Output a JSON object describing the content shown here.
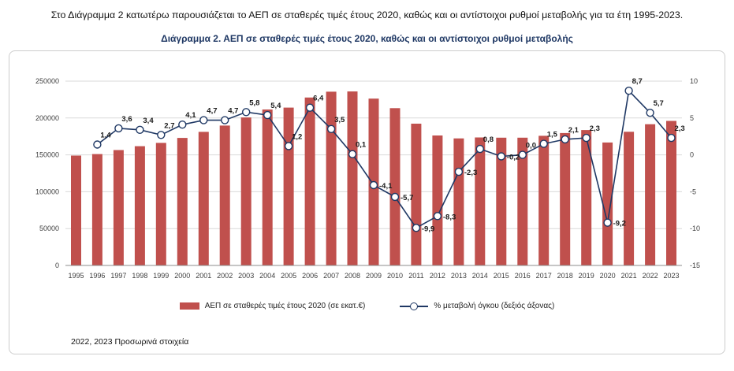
{
  "page": {
    "intro": "Στο Διάγραμμα 2 κατωτέρω παρουσιάζεται το ΑΕΠ σε σταθερές τιμές έτους 2020, καθώς και οι αντίστοιχοι ρυθμοί μεταβολής για τα έτη 1995-2023.",
    "footnote": "2022, 2023  Προσωρινά στοιχεία"
  },
  "chart_data": {
    "type": "bar",
    "subtype": "bar-line-combo",
    "title": "Διάγραμμα 2. ΑΕΠ σε σταθερές τιμές έτους 2020, καθώς και οι αντίστοιχοι ρυθμοί μεταβολής",
    "categories": [
      "1995",
      "1996",
      "1997",
      "1998",
      "1999",
      "2000",
      "2001",
      "2002",
      "2003",
      "2004",
      "2005",
      "2006",
      "2007",
      "2008",
      "2009",
      "2010",
      "2011",
      "2012",
      "2013",
      "2014",
      "2015",
      "2016",
      "2017",
      "2018",
      "2019",
      "2020",
      "2021",
      "2022",
      "2023"
    ],
    "grid": true,
    "legend_position": "bottom",
    "left_axis": {
      "min": 0,
      "max": 250000,
      "ticks": [
        0,
        50000,
        100000,
        150000,
        200000,
        250000
      ]
    },
    "right_axis": {
      "min": -15,
      "max": 10,
      "ticks": [
        -15,
        -10,
        -5,
        0,
        5,
        10
      ]
    },
    "colors": {
      "bar": "#c0504d",
      "line": "#1f3864",
      "grid": "#d9d9d9",
      "axis_text": "#404040",
      "label_text": "#1a1a1a"
    },
    "series": [
      {
        "name": "ΑΕΠ σε σταθερές τιμές έτους  2020 (σε εκατ.€)",
        "type": "bar",
        "axis": "left",
        "values": [
          149000,
          151100,
          156500,
          161800,
          166200,
          173000,
          181200,
          189700,
          200700,
          211500,
          214100,
          227800,
          235700,
          236000,
          226300,
          213400,
          192300,
          176300,
          172300,
          173600,
          173300,
          173300,
          175900,
          179600,
          183700,
          166800,
          181300,
          191600,
          196100
        ]
      },
      {
        "name": "% μεταβολή όγκου (δεξιός άξονας)",
        "type": "line",
        "axis": "right",
        "x_start_index": 1,
        "values": [
          1.4,
          3.6,
          3.4,
          2.7,
          4.1,
          4.7,
          4.7,
          5.8,
          5.4,
          1.2,
          6.4,
          3.5,
          0.1,
          -4.1,
          -5.7,
          -9.9,
          -8.3,
          -2.3,
          0.8,
          -0.2,
          0.0,
          1.5,
          2.1,
          2.3,
          -9.2,
          8.7,
          5.7,
          2.3
        ],
        "labels": [
          "1,4",
          "3,6",
          "3,4",
          "2,7",
          "4,1",
          "4,7",
          "4,7",
          "5,8",
          "5,4",
          "1,2",
          "6,4",
          "3,5",
          "0,1",
          "-4,1",
          "-5,7",
          "-9,9",
          "-8,3",
          "-2,3",
          "0,8",
          "-0,2",
          "0,0",
          "1,5",
          "2,1",
          "2,3",
          "-9,2",
          "8,7",
          "5,7",
          "2,3"
        ]
      }
    ]
  }
}
